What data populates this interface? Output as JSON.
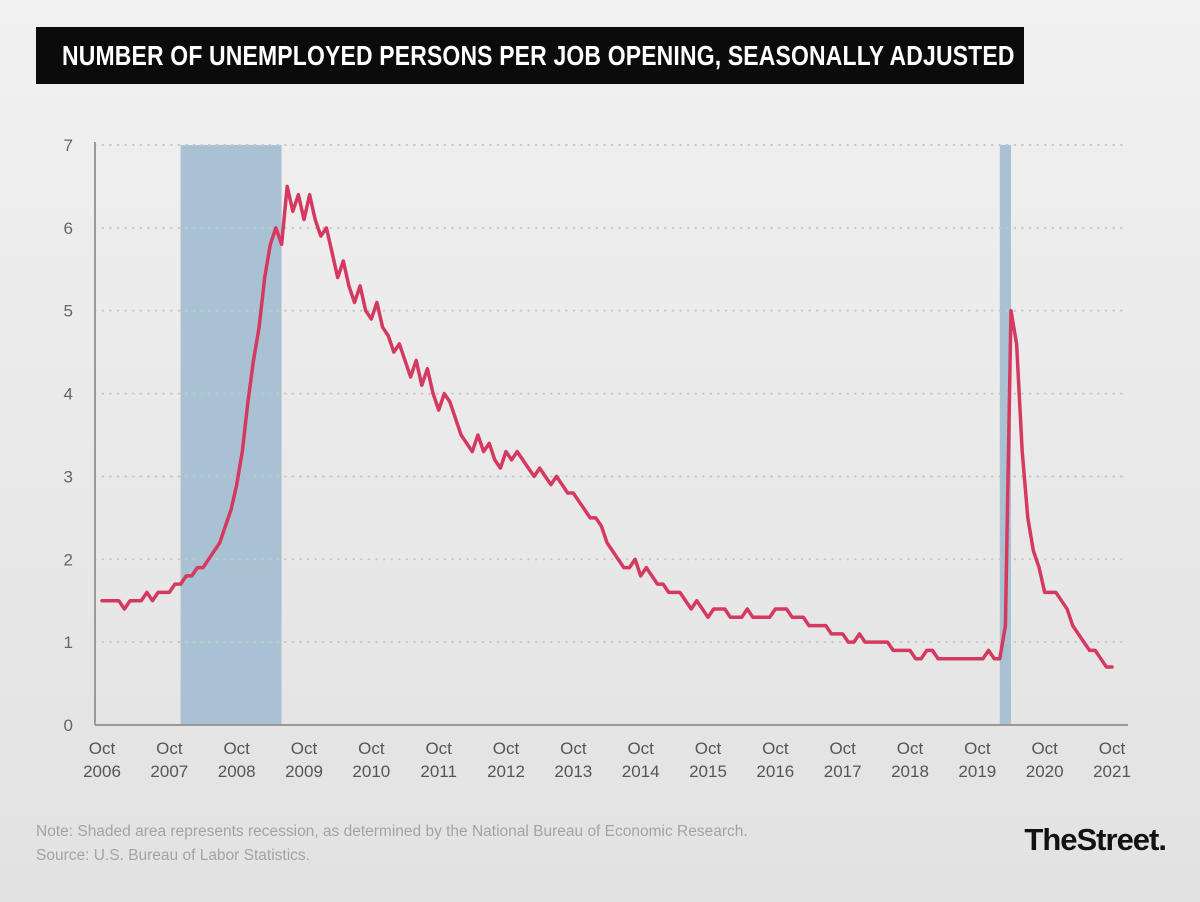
{
  "header": {
    "title": "NUMBER OF UNEMPLOYED PERSONS PER JOB OPENING, SEASONALLY ADJUSTED"
  },
  "footer": {
    "note": "Note: Shaded area represents recession, as determined by the National Bureau of Economic Research.",
    "source": "Source: U.S. Bureau of Labor Statistics.",
    "brand": "TheStreet."
  },
  "chart_data": {
    "type": "line",
    "title": "Number of unemployed persons per job opening, seasonally adjusted",
    "frequency": "monthly",
    "x_start": "2006-10",
    "x_end": "2021-10",
    "ylim": [
      0,
      7
    ],
    "y_ticks": [
      0,
      1,
      2,
      3,
      4,
      5,
      6,
      7
    ],
    "x_ticks": [
      "Oct 2006",
      "Oct 2007",
      "Oct 2008",
      "Oct 2009",
      "Oct 2010",
      "Oct 2011",
      "Oct 2012",
      "Oct 2013",
      "Oct 2014",
      "Oct 2015",
      "Oct 2016",
      "Oct 2017",
      "Oct 2018",
      "Oct 2019",
      "Oct 2020",
      "Oct 2021"
    ],
    "grid": "dotted-horizontal",
    "legend": "none",
    "band_color": "#a9c2d3",
    "recession_bands": [
      {
        "start": "2007-12",
        "end": "2009-06"
      },
      {
        "start": "2020-02",
        "end": "2020-04"
      }
    ],
    "series": [
      {
        "name": "Unemployed persons per job opening",
        "color": "#d63960",
        "values": [
          1.5,
          1.5,
          1.5,
          1.5,
          1.4,
          1.5,
          1.5,
          1.5,
          1.6,
          1.5,
          1.6,
          1.6,
          1.6,
          1.7,
          1.7,
          1.8,
          1.8,
          1.9,
          1.9,
          2.0,
          2.1,
          2.2,
          2.4,
          2.6,
          2.9,
          3.3,
          3.9,
          4.4,
          4.8,
          5.4,
          5.8,
          6.0,
          5.8,
          6.5,
          6.2,
          6.4,
          6.1,
          6.4,
          6.1,
          5.9,
          6.0,
          5.7,
          5.4,
          5.6,
          5.3,
          5.1,
          5.3,
          5.0,
          4.9,
          5.1,
          4.8,
          4.7,
          4.5,
          4.6,
          4.4,
          4.2,
          4.4,
          4.1,
          4.3,
          4.0,
          3.8,
          4.0,
          3.9,
          3.7,
          3.5,
          3.4,
          3.3,
          3.5,
          3.3,
          3.4,
          3.2,
          3.1,
          3.3,
          3.2,
          3.3,
          3.2,
          3.1,
          3.0,
          3.1,
          3.0,
          2.9,
          3.0,
          2.9,
          2.8,
          2.8,
          2.7,
          2.6,
          2.5,
          2.5,
          2.4,
          2.2,
          2.1,
          2.0,
          1.9,
          1.9,
          2.0,
          1.8,
          1.9,
          1.8,
          1.7,
          1.7,
          1.6,
          1.6,
          1.6,
          1.5,
          1.4,
          1.5,
          1.4,
          1.3,
          1.4,
          1.4,
          1.4,
          1.3,
          1.3,
          1.3,
          1.4,
          1.3,
          1.3,
          1.3,
          1.3,
          1.4,
          1.4,
          1.4,
          1.3,
          1.3,
          1.3,
          1.2,
          1.2,
          1.2,
          1.2,
          1.1,
          1.1,
          1.1,
          1.0,
          1.0,
          1.1,
          1.0,
          1.0,
          1.0,
          1.0,
          1.0,
          0.9,
          0.9,
          0.9,
          0.9,
          0.8,
          0.8,
          0.9,
          0.9,
          0.8,
          0.8,
          0.8,
          0.8,
          0.8,
          0.8,
          0.8,
          0.8,
          0.8,
          0.9,
          0.8,
          0.8,
          1.2,
          5.0,
          4.6,
          3.3,
          2.5,
          2.1,
          1.9,
          1.6,
          1.6,
          1.6,
          1.5,
          1.4,
          1.2,
          1.1,
          1.0,
          0.9,
          0.9,
          0.8,
          0.7,
          0.7
        ]
      }
    ]
  }
}
